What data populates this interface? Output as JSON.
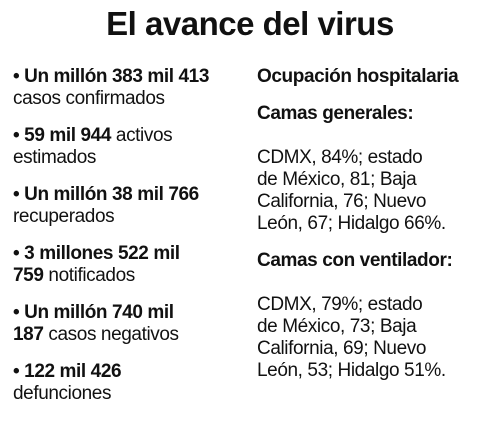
{
  "title": "El avance del virus",
  "stats": [
    {
      "bullet": "•",
      "bold": "Un millón 383 mil 413",
      "text_same_line": "",
      "text": "casos confirmados"
    },
    {
      "bullet": "•",
      "bold": "59 mil 944",
      "text_same_line": "activos",
      "text": "estimados"
    },
    {
      "bullet": "•",
      "bold": "Un millón 38 mil 766",
      "text_same_line": "",
      "text": "recuperados"
    },
    {
      "bullet": "•",
      "bold": "3 millones 522 mil",
      "bold_line2": "759",
      "text": "notificados"
    },
    {
      "bullet": "•",
      "bold": "Un millón 740 mil",
      "bold_line2": "187",
      "text": "casos negativos"
    },
    {
      "bullet": "•",
      "bold": "122 mil 426",
      "text_same_line": "",
      "text": "defunciones"
    }
  ],
  "hospital": {
    "heading": "Ocupación hospitalaria",
    "general": {
      "title": "Camas generales:",
      "lines": [
        "CDMX, 84%; estado",
        "de México, 81; Baja",
        "California, 76; Nuevo",
        "León, 67; Hidalgo 66%."
      ]
    },
    "ventilator": {
      "title": "Camas con ventilador:",
      "lines": [
        "CDMX, 79%; estado",
        "de México, 73; Baja",
        "California, 69; Nuevo",
        "León, 53; Hidalgo 51%."
      ]
    }
  }
}
